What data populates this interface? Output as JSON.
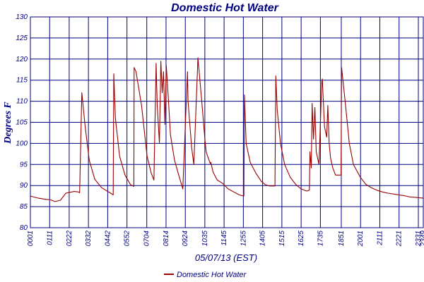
{
  "chart_data": {
    "type": "line",
    "title": "Domestic Hot Water",
    "xlabel": "05/07/13 (EST)",
    "ylabel": "Degrees F",
    "ylim": [
      80,
      130
    ],
    "yticks": [
      80,
      85,
      90,
      95,
      100,
      105,
      110,
      115,
      120,
      125,
      130
    ],
    "xlim": [
      "00:01",
      "23:49"
    ],
    "xticks": [
      "0001",
      "0111",
      "0222",
      "0332",
      "0442",
      "0552",
      "0704",
      "0814",
      "0924",
      "1035",
      "1145",
      "1255",
      "1405",
      "1515",
      "1625",
      "1735",
      "1851",
      "2001",
      "2111",
      "2221",
      "2331",
      "2349"
    ],
    "grid": true,
    "legend": {
      "position": "bottom-center",
      "entries": [
        "Domestic Hot Water"
      ]
    },
    "colors": {
      "series": "#990000",
      "grid": "#000080",
      "text": "#000080"
    },
    "series": [
      {
        "name": "Domestic Hot Water",
        "x": [
          "00:01",
          "00:30",
          "01:00",
          "01:15",
          "01:30",
          "01:50",
          "02:10",
          "02:40",
          "02:55",
          "03:00",
          "03:08",
          "03:20",
          "03:35",
          "03:55",
          "04:20",
          "04:50",
          "05:02",
          "05:04",
          "05:10",
          "05:25",
          "05:45",
          "06:05",
          "06:17",
          "06:18",
          "06:25",
          "06:45",
          "07:05",
          "07:20",
          "07:30",
          "07:38",
          "07:42",
          "07:50",
          "07:55",
          "08:00",
          "08:05",
          "08:10",
          "08:15",
          "08:22",
          "08:30",
          "08:45",
          "09:00",
          "09:15",
          "09:32",
          "09:34",
          "09:40",
          "09:47",
          "09:55",
          "10:10",
          "10:25",
          "10:35",
          "10:40",
          "10:45",
          "10:55",
          "10:57",
          "11:05",
          "11:20",
          "11:40",
          "12:00",
          "12:20",
          "12:40",
          "12:57",
          "12:59",
          "13:05",
          "13:20",
          "13:40",
          "14:00",
          "14:15",
          "14:30",
          "14:50",
          "14:53",
          "14:58",
          "15:10",
          "15:25",
          "15:45",
          "16:05",
          "16:25",
          "16:45",
          "16:55",
          "16:57",
          "17:02",
          "17:05",
          "17:10",
          "17:15",
          "17:20",
          "17:30",
          "17:40",
          "17:42",
          "17:50",
          "17:58",
          "18:02",
          "18:07",
          "18:12",
          "18:20",
          "18:30",
          "18:50",
          "18:52",
          "19:05",
          "19:20",
          "19:35",
          "20:00",
          "20:20",
          "20:40",
          "21:00",
          "21:20",
          "21:40",
          "22:00",
          "22:20",
          "22:40",
          "23:00",
          "23:20",
          "23:49"
        ],
        "y": [
          87.5,
          87,
          86.7,
          86.6,
          86.2,
          86.5,
          88.2,
          88.6,
          88.5,
          88.3,
          112,
          104,
          96,
          91.5,
          89.5,
          88.3,
          87.8,
          116.5,
          106,
          97,
          92.5,
          90.2,
          89.8,
          118,
          117,
          109,
          97,
          93,
          91.3,
          119,
          109,
          100,
          119.5,
          112,
          117,
          104.5,
          118.5,
          111,
          102,
          96,
          92.5,
          89.2,
          117,
          110,
          105,
          99,
          95,
          120.3,
          109,
          101,
          98,
          97,
          95.2,
          95.5,
          93.2,
          91.3,
          90.5,
          89.2,
          88.5,
          87.8,
          87.5,
          111.5,
          100,
          95.5,
          93,
          91,
          90.2,
          89.9,
          89.9,
          116,
          108,
          100,
          95,
          92,
          90.3,
          89.2,
          88.7,
          88.9,
          98,
          94.2,
          109.5,
          101,
          108.5,
          98,
          95,
          114.5,
          115.3,
          104,
          101.5,
          109,
          100,
          96.5,
          94.2,
          92.5,
          92.5,
          118,
          110,
          100,
          95,
          92,
          90.3,
          89.5,
          88.9,
          88.5,
          88.2,
          88,
          87.8,
          87.6,
          87.3,
          87.2,
          87
        ]
      }
    ]
  }
}
